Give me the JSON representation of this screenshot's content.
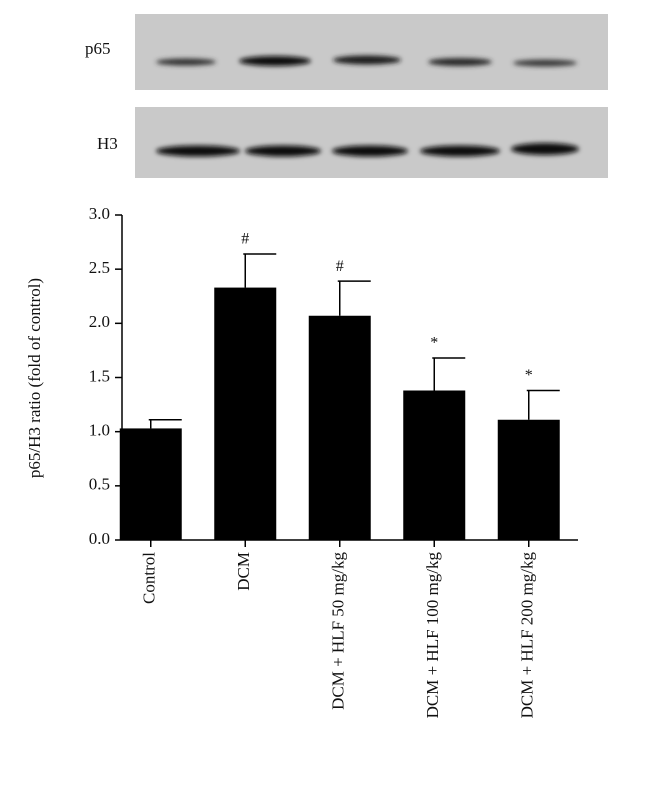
{
  "blot_labels": [
    "p65",
    "H3"
  ],
  "chart_data": {
    "type": "bar",
    "ylabel": "p65/H3 ratio (fold of control)",
    "categories": [
      "Control",
      "DCM",
      "DCM + HLF 50 mg/kg",
      "DCM + HLF 100 mg/kg",
      "DCM + HLF 200 mg/kg"
    ],
    "values": [
      1.03,
      2.33,
      2.07,
      1.38,
      1.11
    ],
    "errors": [
      0.08,
      0.31,
      0.32,
      0.3,
      0.27
    ],
    "annotations": [
      null,
      "#",
      "#",
      "*",
      "*"
    ],
    "color": "#000000",
    "ylim": [
      0,
      3
    ],
    "yticks": [
      {
        "value": 0,
        "label": "0.0"
      },
      0.5,
      {
        "value": 1,
        "label": "1.0"
      },
      1.5,
      {
        "value": 2,
        "label": "2.0"
      },
      2.5,
      {
        "value": 3,
        "label": "3.0"
      }
    ]
  }
}
